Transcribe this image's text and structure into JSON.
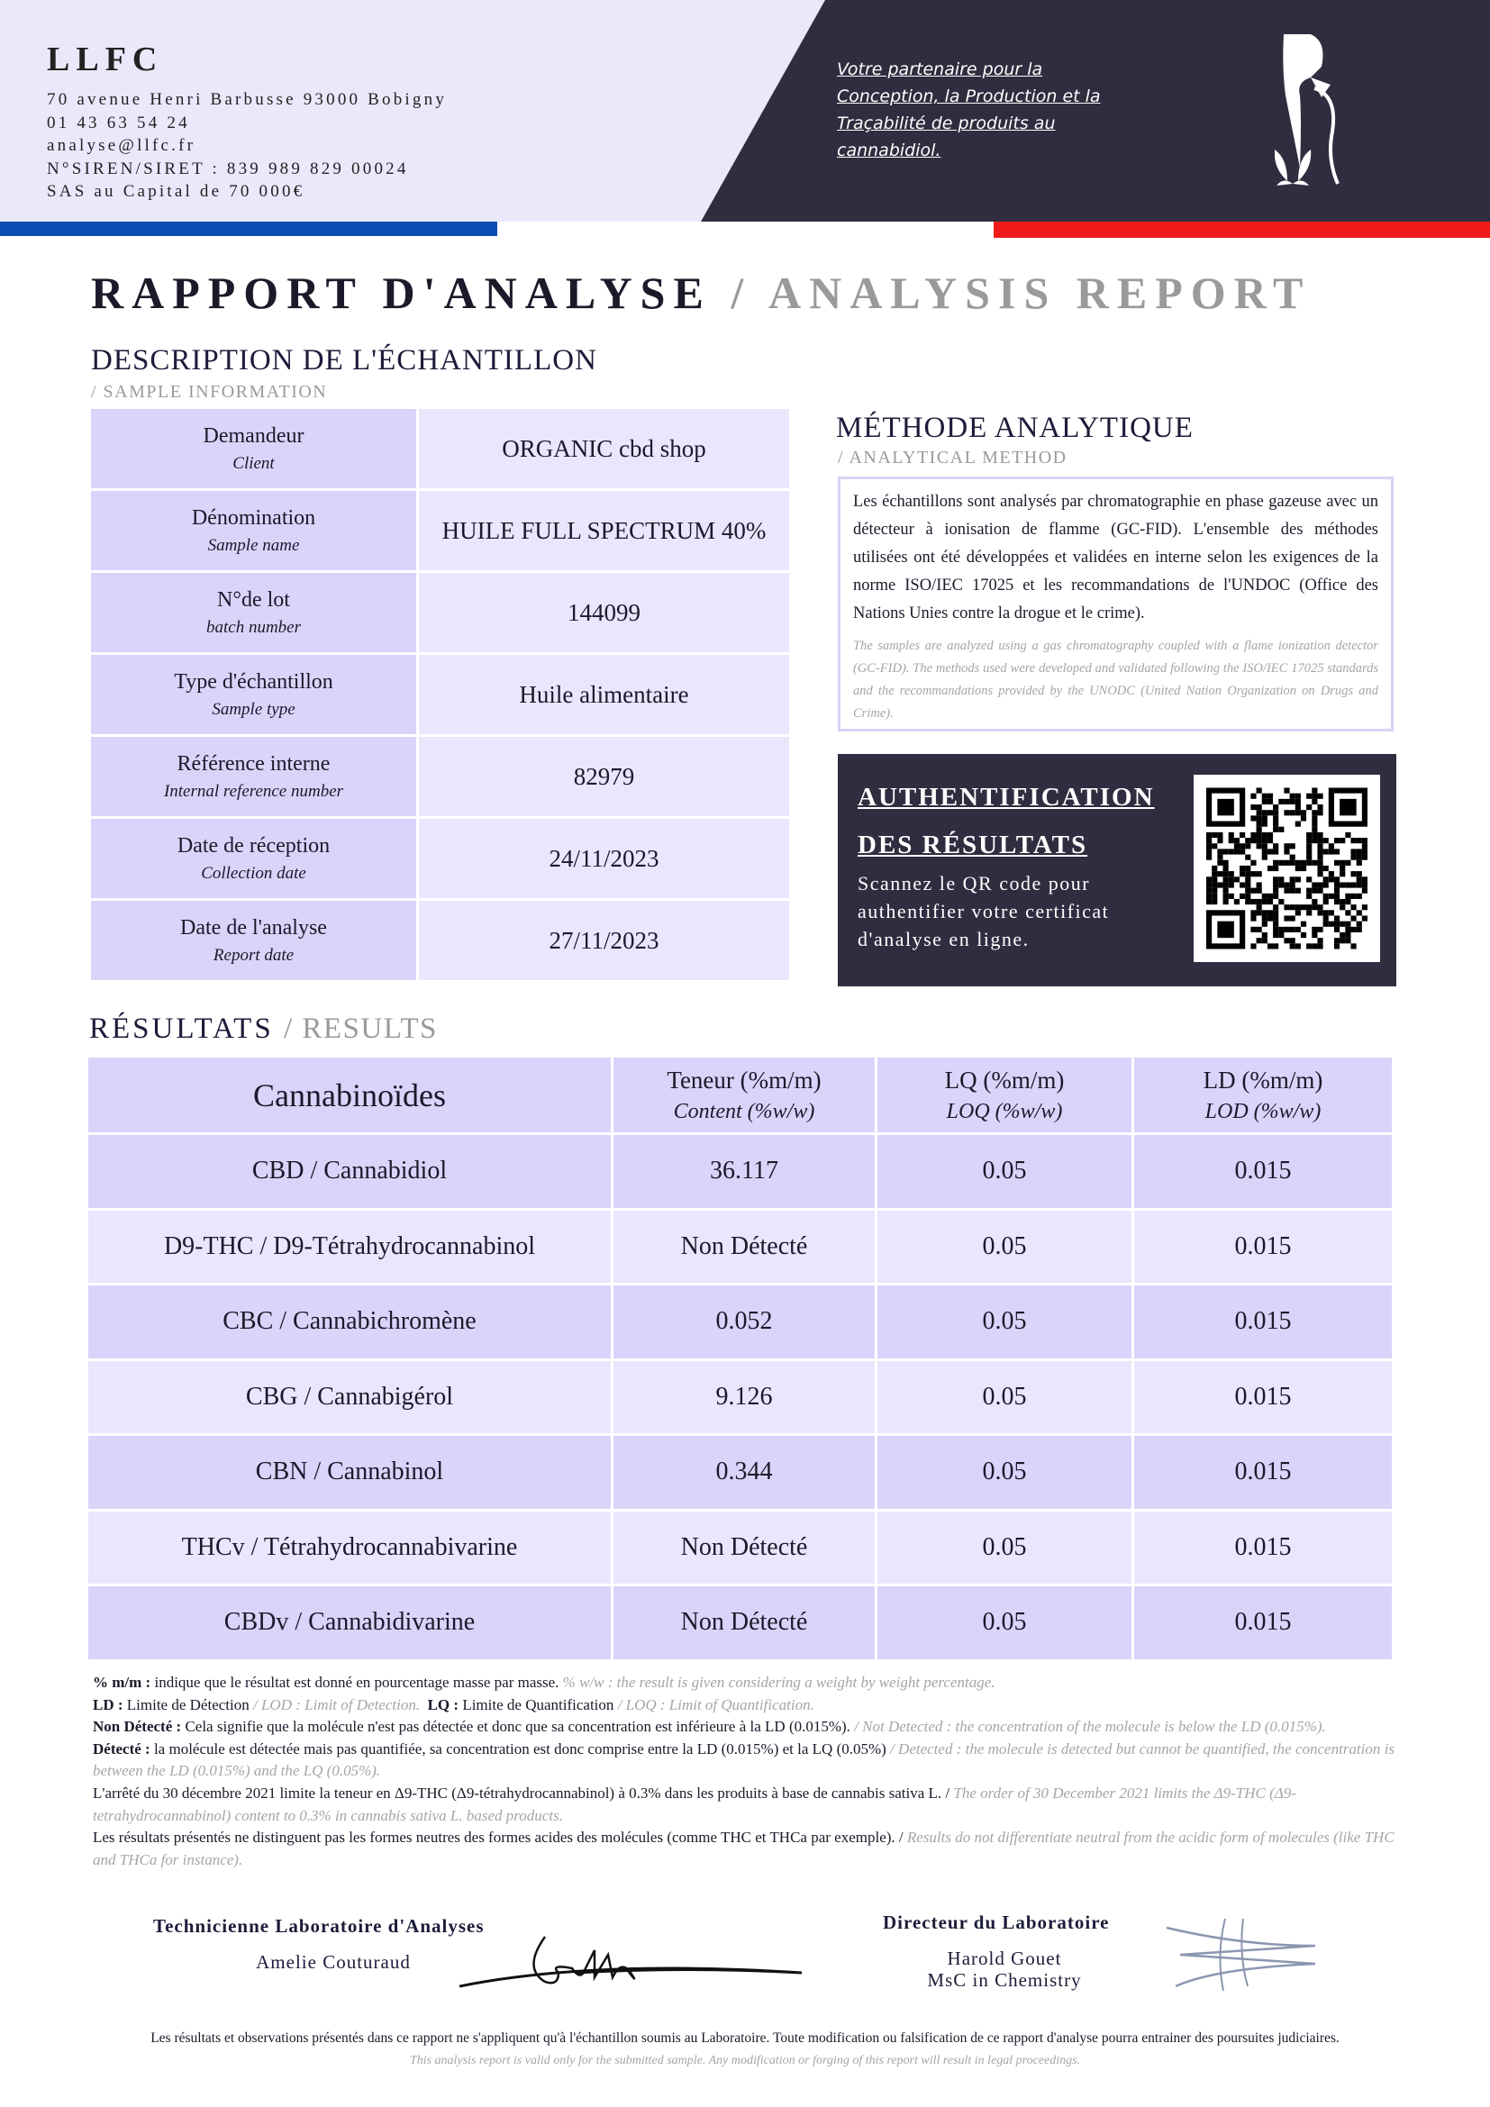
{
  "company": {
    "name": "LLFC",
    "address": "70 avenue Henri Barbusse 93000 Bobigny",
    "phone": "01 43 63 54 24",
    "email": "analyse@llfc.fr",
    "siret": "N°SIREN/SIRET : 839 989 829 00024",
    "capital": "SAS au Capital de 70 000€",
    "tagline": "Votre partenaire pour la Conception, la Production et la Traçabilité de produits au cannabidiol."
  },
  "title": {
    "fr": "RAPPORT D'ANALYSE",
    "sep": " / ",
    "en": "ANALYSIS REPORT"
  },
  "sample": {
    "heading": "DESCRIPTION DE L'ÉCHANTILLON",
    "subheading": "/ SAMPLE INFORMATION",
    "rows": [
      {
        "label": "Demandeur",
        "label_en": "Client",
        "value": "ORGANIC cbd shop"
      },
      {
        "label": "Dénomination",
        "label_en": "Sample name",
        "value": "HUILE FULL SPECTRUM 40%"
      },
      {
        "label": "N°de lot",
        "label_en": "batch number",
        "value": "144099"
      },
      {
        "label": "Type d'échantillon",
        "label_en": "Sample type",
        "value": "Huile alimentaire"
      },
      {
        "label": "Référence interne",
        "label_en": "Internal reference number",
        "value": "82979"
      },
      {
        "label": "Date de réception",
        "label_en": "Collection date",
        "value": "24/11/2023"
      },
      {
        "label": "Date de l'analyse",
        "label_en": "Report date",
        "value": "27/11/2023"
      }
    ]
  },
  "method": {
    "heading": "MÉTHODE ANALYTIQUE",
    "subheading": "/ ANALYTICAL METHOD",
    "text_fr": "Les échantillons sont analysés par chromatographie en phase gazeuse avec un détecteur à ionisation de flamme (GC-FID). L'ensemble des méthodes utilisées ont été développées et validées en interne selon les exigences de la norme ISO/IEC 17025 et les recommandations de l'UNDOC (Office des Nations Unies contre la drogue et le crime).",
    "text_en": "The samples are analyzed using a gas chromatography coupled with a flame ionization detector (GC-FID). The methods used were developed and validated following the ISO/IEC 17025 standards and the recommandations provided by the UNODC (United Nation Organization on Drugs and Crime)."
  },
  "auth": {
    "title_line1": "AUTHENTIFICATION",
    "title_line2": "DES RÉSULTATS",
    "description": "Scannez le QR code pour authentifier votre certificat d'analyse en ligne."
  },
  "results": {
    "heading": "RÉSULTATS",
    "subheading": "/  RESULTS",
    "headers": [
      {
        "fr": "Cannabinoïdes",
        "en": ""
      },
      {
        "fr": "Teneur (%m/m)",
        "en": "Content (%w/w)"
      },
      {
        "fr": "LQ (%m/m)",
        "en": "LOQ (%w/w)"
      },
      {
        "fr": "LD (%m/m)",
        "en": "LOD (%w/w)"
      }
    ],
    "rows": [
      {
        "name": "CBD / Cannabidiol",
        "content": "36.117",
        "loq": "0.05",
        "lod": "0.015"
      },
      {
        "name": "D9-THC / D9-Tétrahydrocannabinol",
        "content": "Non Détecté",
        "loq": "0.05",
        "lod": "0.015"
      },
      {
        "name": "CBC / Cannabichromène",
        "content": "0.052",
        "loq": "0.05",
        "lod": "0.015"
      },
      {
        "name": "CBG / Cannabigérol",
        "content": "9.126",
        "loq": "0.05",
        "lod": "0.015"
      },
      {
        "name": "CBN / Cannabinol",
        "content": "0.344",
        "loq": "0.05",
        "lod": "0.015"
      },
      {
        "name": "THCv / Tétrahydrocannabivarine",
        "content": "Non Détecté",
        "loq": "0.05",
        "lod": "0.015"
      },
      {
        "name": "CBDv / Cannabidivarine",
        "content": "Non Détecté",
        "loq": "0.05",
        "lod": "0.015"
      }
    ]
  },
  "notes": [
    {
      "bold": "% m/m :",
      "fr": " indique que le résultat est donné en pourcentage masse par masse. ",
      "en": " % w/w : the result is given considering a weight by weight percentage."
    },
    {
      "bold": "LD :",
      "fr": " Limite de Détection",
      "en": " / LOD : Limit of Detection.",
      "bold2": "LQ :",
      "fr2": " Limite de Quantification",
      "en2": " / LOQ : Limit of Quantification."
    },
    {
      "bold": "Non Détecté :",
      "fr": " Cela signifie que la molécule n'est pas détectée et donc que sa concentration est inférieure à la LD (0.015%).",
      "en": " / Not Detected : the concentration of the molecule is below the LD (0.015%)."
    },
    {
      "bold": "Détecté :",
      "fr": " la molécule est détectée mais pas quantifiée, sa concentration est donc comprise entre la LD (0.015%) et la LQ (0.05%)",
      "en": " / Detected : the molecule is detected but cannot be quantified, the concentration is between the LD (0.015%) and the LQ (0.05%)."
    },
    {
      "bold": "",
      "fr": "L'arrêté du 30 décembre 2021 limite la teneur en Δ9-THC (Δ9-tétrahydrocannabinol) à 0.3% dans les produits à base de cannabis sativa L. /",
      "en": " The order of 30 December 2021 limits the Δ9-THC (Δ9-tetrahydrocannabinol) content to 0.3% in cannabis sativa L. based products."
    },
    {
      "bold": "",
      "fr": "Les résultats présentés ne distinguent pas les formes neutres des formes acides des molécules (comme THC et THCa par exemple). /",
      "en": " Results do not differentiate neutral from the acidic form of molecules (like THC and THCa for instance)."
    }
  ],
  "signatures": {
    "technician_title": "Technicienne Laboratoire d'Analyses",
    "technician_name": "Amelie Couturaud",
    "director_title": "Directeur du Laboratoire",
    "director_name": "Harold Gouet",
    "director_degree": "MsC in Chemistry"
  },
  "footer": {
    "fr": "Les résultats et observations présentés dans ce rapport ne s'appliquent qu'à l'échantillon soumis au Laboratoire. Toute modification ou falsification de ce rapport d'analyse pourra entrainer des poursuites judiciaires.",
    "en": "This analysis report is valid only for the submitted sample. Any modification or forging of this report will result in legal proceedings."
  },
  "colors": {
    "dark": "#2f2d3f",
    "lavender": "#dcd3fa",
    "light_lavender": "#ebe6fd",
    "flag_blue": "#0b4db3",
    "flag_red": "#f21b1b"
  }
}
